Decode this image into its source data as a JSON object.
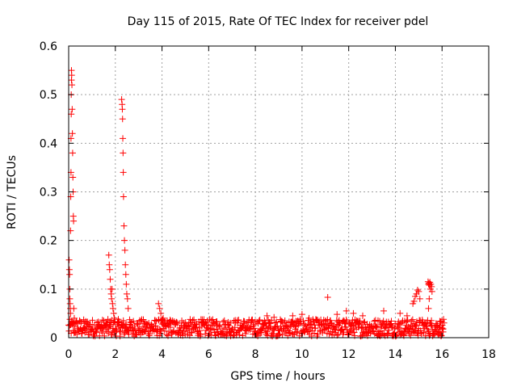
{
  "chart_data": {
    "type": "scatter",
    "title": "Day 115 of 2015, Rate Of TEC Index for receiver pdel",
    "xlabel": "GPS time / hours",
    "ylabel": "ROTI / TECUs",
    "xlim": [
      0,
      18
    ],
    "ylim": [
      0,
      0.6
    ],
    "x_ticks": [
      0,
      2,
      4,
      6,
      8,
      10,
      12,
      14,
      16,
      18
    ],
    "y_ticks": [
      0,
      0.1,
      0.2,
      0.3,
      0.4,
      0.5,
      0.6
    ],
    "x_tick_labels": [
      "0",
      "2",
      "4",
      "6",
      "8",
      "10",
      "12",
      "14",
      "16",
      "18"
    ],
    "y_tick_labels": [
      "0",
      "0.1",
      "0.2",
      "0.3",
      "0.4",
      "0.5",
      "0.6"
    ],
    "grid": true,
    "marker": "plus",
    "color": "#ff0000",
    "series": [
      {
        "name": "ROTI",
        "points": [
          [
            0.02,
            0.16
          ],
          [
            0.03,
            0.14
          ],
          [
            0.04,
            0.13
          ],
          [
            0.05,
            0.1
          ],
          [
            0.05,
            0.08
          ],
          [
            0.06,
            0.07
          ],
          [
            0.07,
            0.06
          ],
          [
            0.08,
            0.05
          ],
          [
            0.08,
            0.22
          ],
          [
            0.09,
            0.29
          ],
          [
            0.1,
            0.34
          ],
          [
            0.1,
            0.41
          ],
          [
            0.11,
            0.46
          ],
          [
            0.11,
            0.5
          ],
          [
            0.12,
            0.53
          ],
          [
            0.12,
            0.55
          ],
          [
            0.13,
            0.54
          ],
          [
            0.14,
            0.52
          ],
          [
            0.15,
            0.47
          ],
          [
            0.16,
            0.42
          ],
          [
            0.17,
            0.38
          ],
          [
            0.18,
            0.33
          ],
          [
            0.19,
            0.3
          ],
          [
            0.2,
            0.25
          ],
          [
            0.21,
            0.24
          ],
          [
            0.22,
            0.06
          ],
          [
            0.24,
            0.04
          ],
          [
            1.72,
            0.17
          ],
          [
            1.74,
            0.15
          ],
          [
            1.76,
            0.14
          ],
          [
            1.78,
            0.12
          ],
          [
            1.8,
            0.1
          ],
          [
            1.82,
            0.09
          ],
          [
            1.84,
            0.08
          ],
          [
            1.86,
            0.1
          ],
          [
            1.88,
            0.07
          ],
          [
            1.9,
            0.06
          ],
          [
            1.93,
            0.05
          ],
          [
            1.96,
            0.04
          ],
          [
            2.27,
            0.49
          ],
          [
            2.29,
            0.48
          ],
          [
            2.3,
            0.47
          ],
          [
            2.31,
            0.45
          ],
          [
            2.32,
            0.41
          ],
          [
            2.33,
            0.38
          ],
          [
            2.34,
            0.34
          ],
          [
            2.35,
            0.29
          ],
          [
            2.37,
            0.23
          ],
          [
            2.39,
            0.2
          ],
          [
            2.41,
            0.18
          ],
          [
            2.43,
            0.15
          ],
          [
            2.45,
            0.13
          ],
          [
            2.47,
            0.11
          ],
          [
            2.49,
            0.09
          ],
          [
            2.52,
            0.08
          ],
          [
            2.55,
            0.06
          ],
          [
            3.85,
            0.07
          ],
          [
            3.9,
            0.06
          ],
          [
            3.95,
            0.05
          ],
          [
            4.05,
            0.04
          ],
          [
            8.5,
            0.045
          ],
          [
            8.8,
            0.042
          ],
          [
            9.6,
            0.045
          ],
          [
            10.0,
            0.048
          ],
          [
            10.3,
            0.04
          ],
          [
            11.1,
            0.083
          ],
          [
            11.5,
            0.048
          ],
          [
            11.9,
            0.055
          ],
          [
            12.2,
            0.05
          ],
          [
            12.6,
            0.045
          ],
          [
            13.5,
            0.055
          ],
          [
            14.2,
            0.05
          ],
          [
            14.5,
            0.045
          ],
          [
            14.75,
            0.07
          ],
          [
            14.8,
            0.075
          ],
          [
            14.85,
            0.085
          ],
          [
            14.9,
            0.09
          ],
          [
            14.95,
            0.098
          ],
          [
            15.0,
            0.095
          ],
          [
            15.05,
            0.08
          ],
          [
            15.4,
            0.115
          ],
          [
            15.42,
            0.11
          ],
          [
            15.44,
            0.112
          ],
          [
            15.46,
            0.108
          ],
          [
            15.48,
            0.114
          ],
          [
            15.5,
            0.1
          ],
          [
            15.52,
            0.11
          ],
          [
            15.55,
            0.105
          ],
          [
            15.57,
            0.095
          ],
          [
            15.45,
            0.08
          ],
          [
            15.42,
            0.06
          ],
          [
            15.8,
            0.025
          ],
          [
            15.9,
            0.022
          ],
          [
            16.0,
            0.02
          ],
          [
            16.05,
            0.018
          ]
        ],
        "background_band": {
          "x_range": [
            0.0,
            16.1
          ],
          "y_typical": [
            0.0,
            0.035
          ]
        }
      }
    ]
  }
}
